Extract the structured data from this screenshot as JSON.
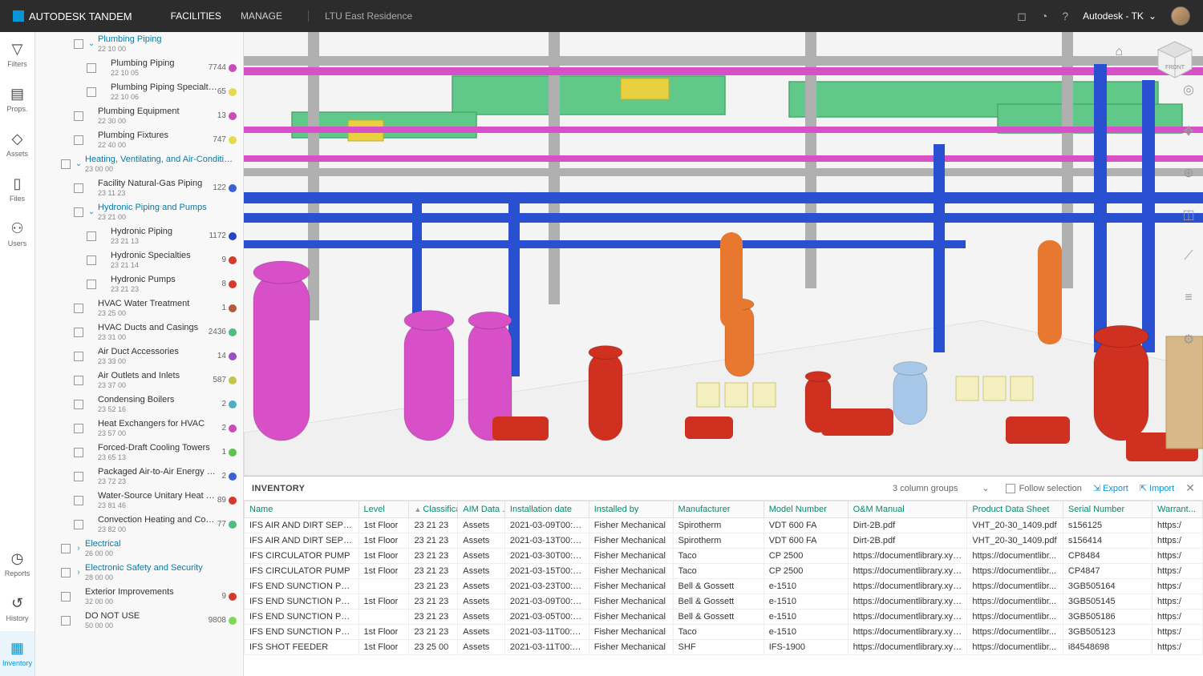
{
  "header": {
    "brand": "AUTODESK TANDEM",
    "nav": {
      "facilities": "FACILITIES",
      "manage": "MANAGE"
    },
    "facility": "LTU East Residence",
    "user_label": "Autodesk - TK"
  },
  "rail": {
    "filters": "Filters",
    "props": "Props.",
    "assets": "Assets",
    "files": "Files",
    "users": "Users",
    "reports": "Reports",
    "history": "History",
    "inventory": "Inventory"
  },
  "tree": {
    "items": [
      {
        "indent": 1,
        "caret": "down",
        "title": "Plumbing Piping",
        "code": "22 10 00",
        "link": true
      },
      {
        "indent": 2,
        "title": "Plumbing Piping",
        "code": "22 10 05",
        "count": "7744",
        "dot": "#c94db8"
      },
      {
        "indent": 2,
        "title": "Plumbing Piping Specialties",
        "code": "22 10 06",
        "count": "65",
        "dot": "#e6d94a"
      },
      {
        "indent": 1,
        "title": "Plumbing Equipment",
        "code": "22 30 00",
        "count": "13",
        "dot": "#c94db8"
      },
      {
        "indent": 1,
        "title": "Plumbing Fixtures",
        "code": "22 40 00",
        "count": "747",
        "dot": "#e6d94a"
      },
      {
        "indent": 0,
        "caret": "down",
        "title": "Heating, Ventilating, and Air-Conditioning (...",
        "code": "23 00 00",
        "link": true
      },
      {
        "indent": 1,
        "title": "Facility Natural-Gas Piping",
        "code": "23 11 23",
        "count": "122",
        "dot": "#3a62d6"
      },
      {
        "indent": 1,
        "caret": "down",
        "title": "Hydronic Piping and Pumps",
        "code": "23 21 00",
        "link": true
      },
      {
        "indent": 2,
        "title": "Hydronic Piping",
        "code": "23 21 13",
        "count": "1172",
        "dot": "#2146c9"
      },
      {
        "indent": 2,
        "title": "Hydronic Specialties",
        "code": "23 21 14",
        "count": "9",
        "dot": "#d63a2a"
      },
      {
        "indent": 2,
        "title": "Hydronic Pumps",
        "code": "23 21 23",
        "count": "8",
        "dot": "#d63a2a"
      },
      {
        "indent": 1,
        "title": "HVAC Water Treatment",
        "code": "23 25 00",
        "count": "1",
        "dot": "#b55a3a"
      },
      {
        "indent": 1,
        "title": "HVAC Ducts and Casings",
        "code": "23 31 00",
        "count": "2436",
        "dot": "#4dbf7a"
      },
      {
        "indent": 1,
        "title": "Air Duct Accessories",
        "code": "23 33 00",
        "count": "14",
        "dot": "#9a4dc4"
      },
      {
        "indent": 1,
        "title": "Air Outlets and Inlets",
        "code": "23 37 00",
        "count": "587",
        "dot": "#c4c44d"
      },
      {
        "indent": 1,
        "title": "Condensing Boilers",
        "code": "23 52 16",
        "count": "2",
        "dot": "#4dafc4"
      },
      {
        "indent": 1,
        "title": "Heat Exchangers for HVAC",
        "code": "23 57 00",
        "count": "2",
        "dot": "#c94db8"
      },
      {
        "indent": 1,
        "title": "Forced-Draft Cooling Towers",
        "code": "23 65 13",
        "count": "1",
        "dot": "#5ac44d"
      },
      {
        "indent": 1,
        "title": "Packaged Air-to-Air Energy Recover...",
        "code": "23 72 23",
        "count": "2",
        "dot": "#3a62d6"
      },
      {
        "indent": 1,
        "title": "Water-Source Unitary Heat Pumps",
        "code": "23 81 46",
        "count": "89",
        "dot": "#d63a2a"
      },
      {
        "indent": 1,
        "title": "Convection Heating and Cooling U...",
        "code": "23 82 00",
        "count": "77",
        "dot": "#4dbf7a"
      },
      {
        "indent": 0,
        "caret": "right",
        "title": "Electrical",
        "code": "26 00 00",
        "link": true
      },
      {
        "indent": 0,
        "caret": "right",
        "title": "Electronic Safety and Security",
        "code": "28 00 00",
        "link": true
      },
      {
        "indent": 0,
        "title": "Exterior Improvements",
        "code": "32 00 00",
        "count": "9",
        "dot": "#d63a2a"
      },
      {
        "indent": 0,
        "title": "DO NOT USE",
        "code": "50 00 00",
        "count": "9808",
        "dot": "#7ed957"
      }
    ]
  },
  "viewport": {
    "cube_label": "FRONT",
    "colors": {
      "bg": "#e8e8ea",
      "floor": "#f0f0f0",
      "beams": "#b0b0b0",
      "magenta": "#d850c8",
      "blue": "#2850d0",
      "green": "#60c888",
      "orange": "#e87830",
      "red": "#d03020",
      "yellow": "#e8d040",
      "lightblue": "#a8c8ea",
      "tan": "#d8b888"
    }
  },
  "inventory": {
    "title": "INVENTORY",
    "column_groups": "3 column groups",
    "follow": "Follow selection",
    "export": "Export",
    "import": "Import",
    "columns": [
      "Name",
      "Level",
      "Classificat",
      "AIM Data ...",
      "Installation date",
      "Installed by",
      "Manufacturer",
      "Model Number",
      "O&M Manual",
      "Product Data Sheet",
      "Serial Number",
      "Warrant..."
    ],
    "widths": [
      136,
      60,
      58,
      56,
      100,
      100,
      108,
      100,
      142,
      114,
      106,
      60
    ],
    "sort_col": 2,
    "rows": [
      [
        "IFS AIR AND DIRT SEPERA...",
        "1st Floor",
        "23 21 23",
        "Assets",
        "2021-03-09T00:00:...",
        "Fisher Mechanical",
        "Spirotherm",
        "VDT 600 FA",
        "Dirt-2B.pdf",
        "VHT_20-30_1409.pdf",
        "s156125",
        "https:/"
      ],
      [
        "IFS AIR AND DIRT SEPERA...",
        "1st Floor",
        "23 21 23",
        "Assets",
        "2021-03-13T00:00:...",
        "Fisher Mechanical",
        "Spirotherm",
        "VDT 600 FA",
        "Dirt-2B.pdf",
        "VHT_20-30_1409.pdf",
        "s156414",
        "https:/"
      ],
      [
        "IFS CIRCULATOR PUMP",
        "1st Floor",
        "23 21 23",
        "Assets",
        "2021-03-30T00:00:...",
        "Fisher Mechanical",
        "Taco",
        "CP 2500",
        "https://documentlibrary.xylem...",
        "https://documentlibr...",
        "CP8484",
        "https:/"
      ],
      [
        "IFS CIRCULATOR PUMP",
        "1st Floor",
        "23 21 23",
        "Assets",
        "2021-03-15T00:00:...",
        "Fisher Mechanical",
        "Taco",
        "CP 2500",
        "https://documentlibrary.xylem...",
        "https://documentlibr...",
        "CP4847",
        "https:/"
      ],
      [
        "IFS END SUNCTION PUMP",
        "",
        "23 21 23",
        "Assets",
        "2021-03-23T00:00:...",
        "Fisher Mechanical",
        "Bell & Gossett",
        "e-1510",
        "https://documentlibrary.xylem...",
        "https://documentlibr...",
        "3GB505164",
        "https:/"
      ],
      [
        "IFS END SUNCTION PUMP",
        "1st Floor",
        "23 21 23",
        "Assets",
        "2021-03-09T00:00:...",
        "Fisher Mechanical",
        "Bell & Gossett",
        "e-1510",
        "https://documentlibrary.xylem...",
        "https://documentlibr...",
        "3GB505145",
        "https:/"
      ],
      [
        "IFS END SUNCTION PUMP",
        "",
        "23 21 23",
        "Assets",
        "2021-03-05T00:00:...",
        "Fisher Mechanical",
        "Bell & Gossett",
        "e-1510",
        "https://documentlibrary.xylem...",
        "https://documentlibr...",
        "3GB505186",
        "https:/"
      ],
      [
        "IFS END SUNCTION PUMP",
        "1st Floor",
        "23 21 23",
        "Assets",
        "2021-03-11T00:00:...",
        "Fisher Mechanical",
        "Taco",
        "e-1510",
        "https://documentlibrary.xylem...",
        "https://documentlibr...",
        "3GB505123",
        "https:/"
      ],
      [
        "IFS SHOT FEEDER",
        "1st Floor",
        "23 25 00",
        "Assets",
        "2021-03-11T00:00:...",
        "Fisher Mechanical",
        "SHF",
        "IFS-1900",
        "https://documentlibrary.xylem...",
        "https://documentlibr...",
        "i84548698",
        "https:/"
      ]
    ]
  }
}
